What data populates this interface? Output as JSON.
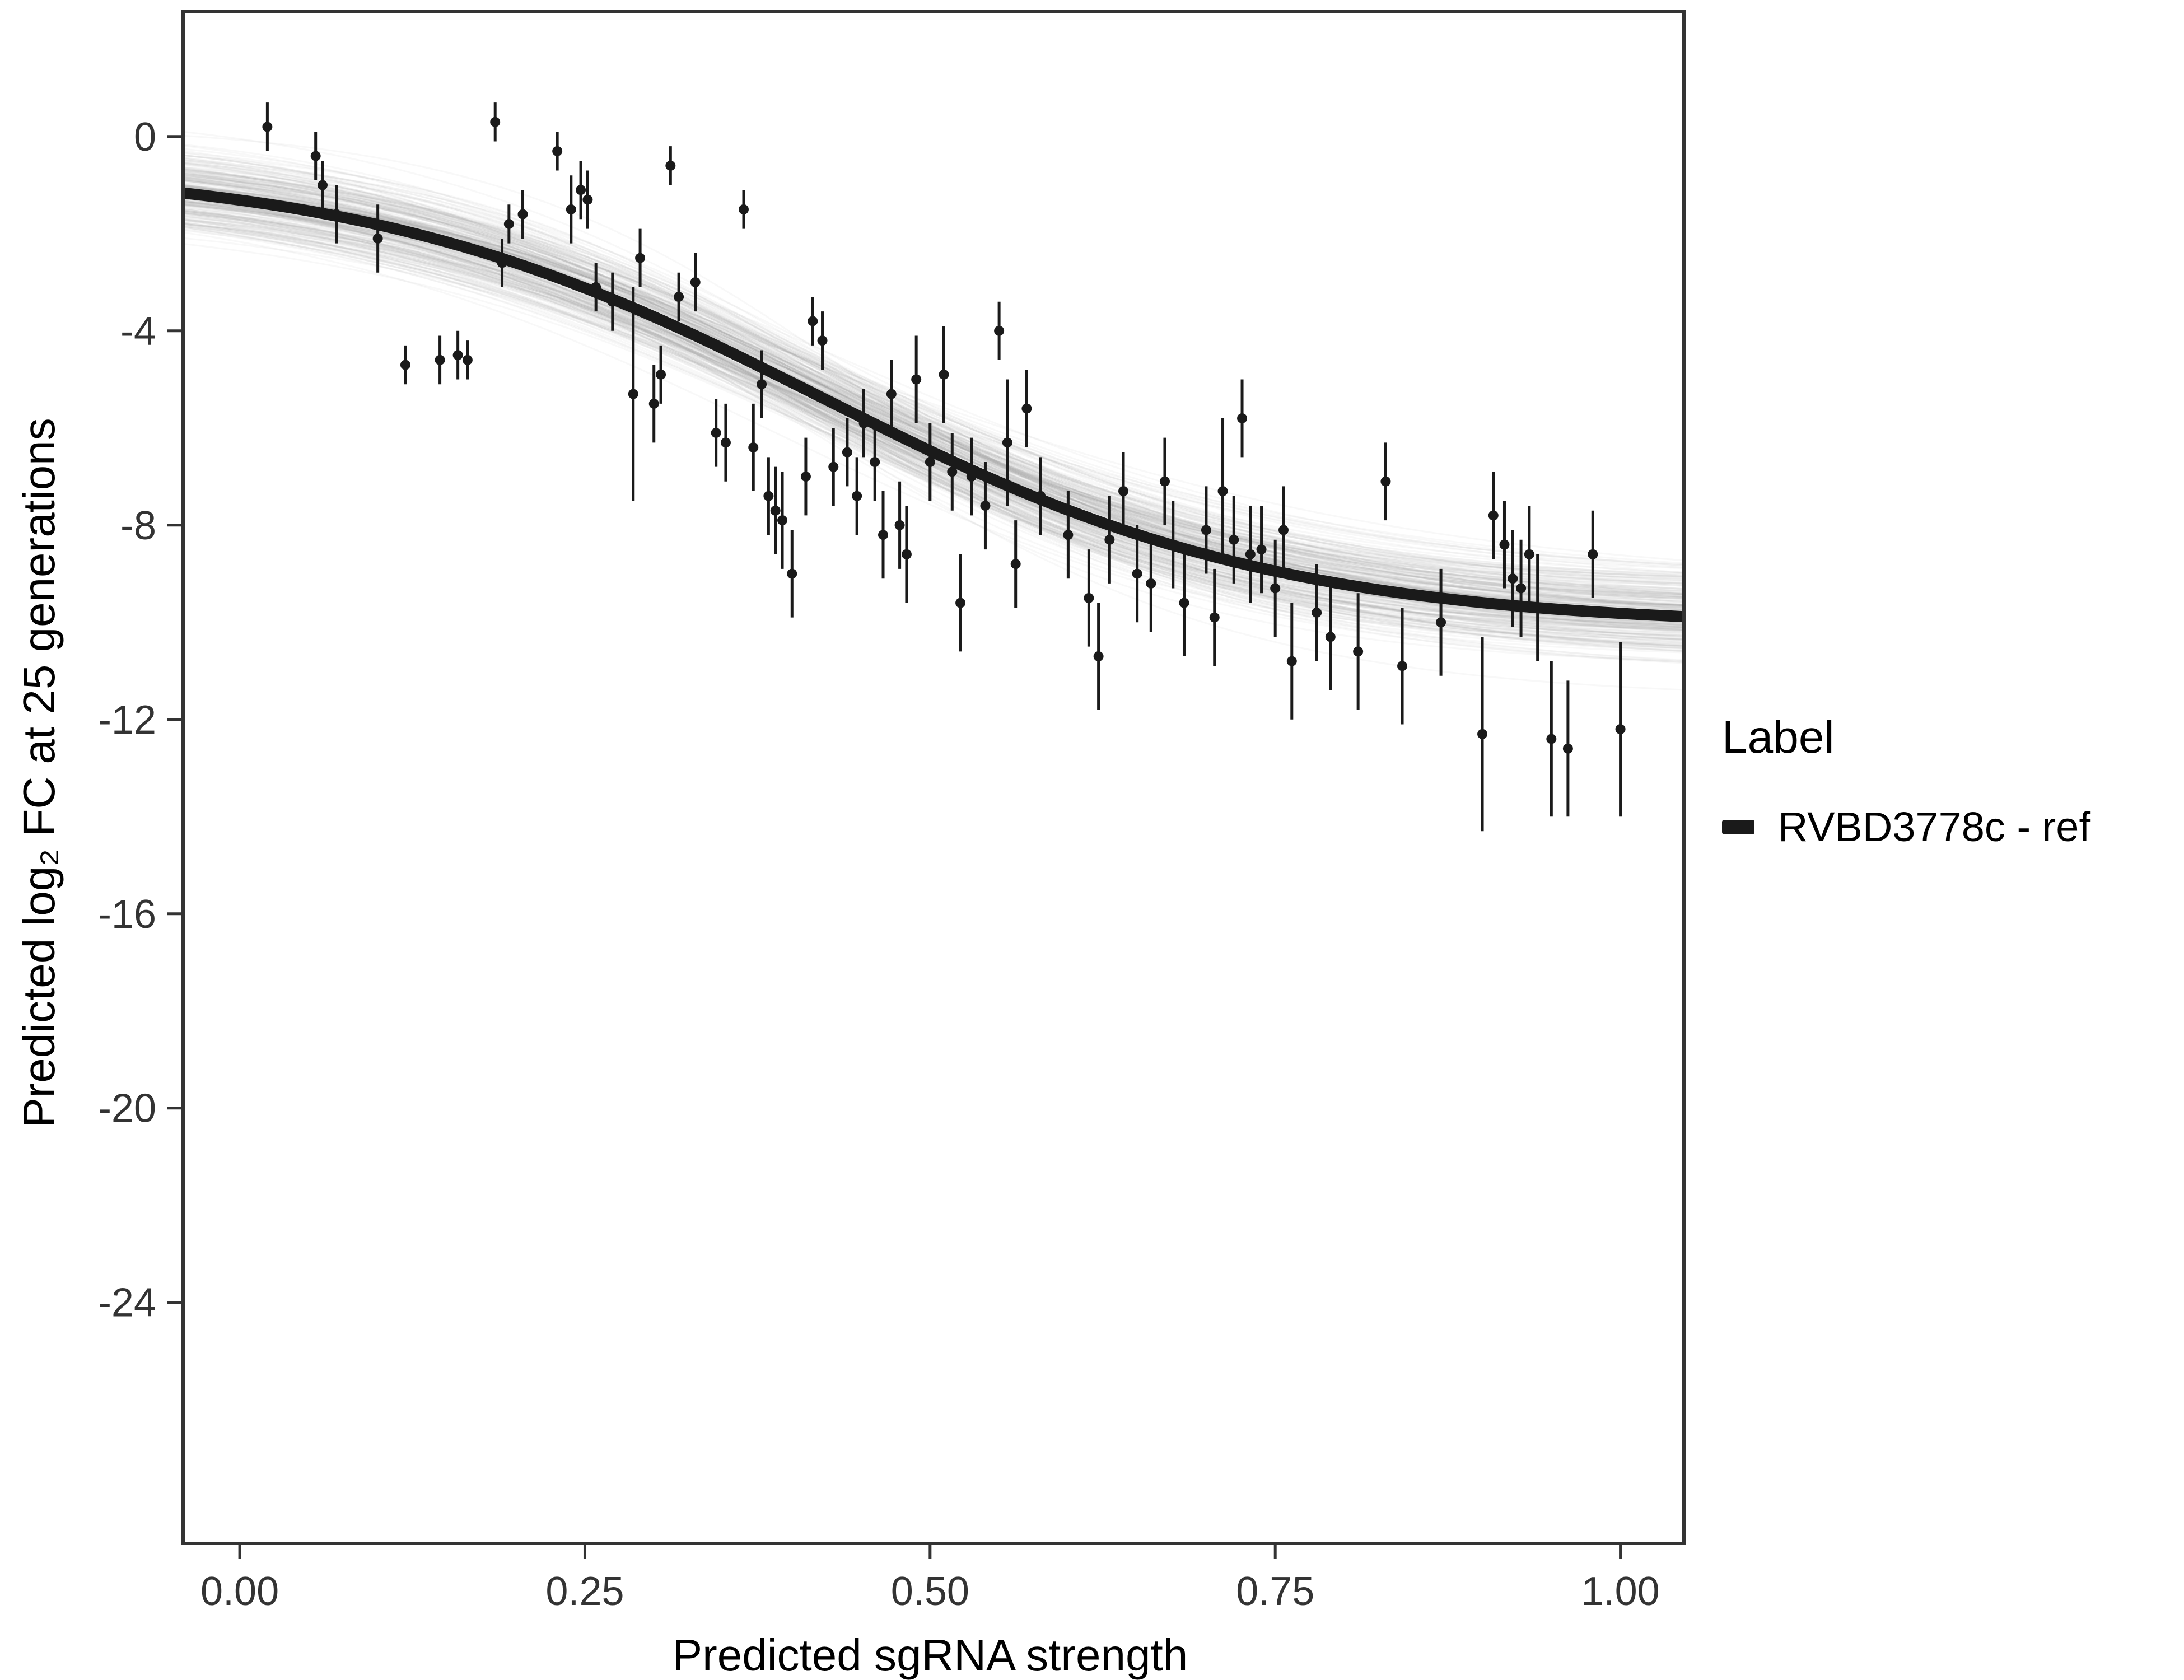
{
  "figure": {
    "background": "#ffffff",
    "panel_border_color": "#333333",
    "tick_color": "#333333",
    "tick_label_color": "#333333",
    "title_color": "#000000"
  },
  "chart_data": {
    "type": "scatter",
    "title": "",
    "xlabel": "Predicted sgRNA strength",
    "ylabel": "Predicted  log₂ FC at 25 generations",
    "xlim": [
      -0.041,
      1.046
    ],
    "ylim": [
      -28.96,
      2.58
    ],
    "x_ticks": [
      0,
      0.25,
      0.5,
      0.75,
      1
    ],
    "x_tick_labels": [
      "0.00",
      "0.25",
      "0.50",
      "0.75",
      "1.00"
    ],
    "y_ticks": [
      0,
      -4,
      -8,
      -12,
      -16,
      -20,
      -24
    ],
    "y_tick_labels": [
      "0",
      "-4",
      "-8",
      "-12",
      "-16",
      "-20",
      "-24"
    ],
    "grid": false,
    "point_color": "#1a1a1a",
    "point_radius": 9,
    "errorbar_width": 5,
    "points": [
      [
        0.02,
        0.2,
        0.5
      ],
      [
        0.055,
        -0.4,
        0.5
      ],
      [
        0.06,
        -1.0,
        0.5
      ],
      [
        0.07,
        -1.6,
        0.6
      ],
      [
        0.1,
        -2.1,
        0.7
      ],
      [
        0.12,
        -4.7,
        0.4
      ],
      [
        0.145,
        -4.6,
        0.5
      ],
      [
        0.158,
        -4.5,
        0.5
      ],
      [
        0.165,
        -4.6,
        0.4
      ],
      [
        0.185,
        0.3,
        0.4
      ],
      [
        0.19,
        -2.6,
        0.5
      ],
      [
        0.195,
        -1.8,
        0.4
      ],
      [
        0.205,
        -1.6,
        0.5
      ],
      [
        0.23,
        -0.3,
        0.4
      ],
      [
        0.24,
        -1.5,
        0.7
      ],
      [
        0.247,
        -1.1,
        0.6
      ],
      [
        0.252,
        -1.3,
        0.6
      ],
      [
        0.258,
        -3.1,
        0.5
      ],
      [
        0.27,
        -3.4,
        0.6
      ],
      [
        0.285,
        -5.3,
        2.2
      ],
      [
        0.29,
        -2.5,
        0.6
      ],
      [
        0.3,
        -5.5,
        0.8
      ],
      [
        0.305,
        -4.9,
        0.6
      ],
      [
        0.312,
        -0.6,
        0.4
      ],
      [
        0.318,
        -3.3,
        0.5
      ],
      [
        0.33,
        -3.0,
        0.6
      ],
      [
        0.345,
        -6.1,
        0.7
      ],
      [
        0.352,
        -6.3,
        0.8
      ],
      [
        0.365,
        -1.5,
        0.4
      ],
      [
        0.372,
        -6.4,
        0.9
      ],
      [
        0.378,
        -5.1,
        0.7
      ],
      [
        0.383,
        -7.4,
        0.8
      ],
      [
        0.388,
        -7.7,
        0.9
      ],
      [
        0.393,
        -7.9,
        1.0
      ],
      [
        0.4,
        -9.0,
        0.9
      ],
      [
        0.41,
        -7.0,
        0.8
      ],
      [
        0.415,
        -3.8,
        0.5
      ],
      [
        0.422,
        -4.2,
        0.6
      ],
      [
        0.43,
        -6.8,
        0.8
      ],
      [
        0.44,
        -6.5,
        0.7
      ],
      [
        0.447,
        -7.4,
        0.8
      ],
      [
        0.452,
        -5.9,
        0.7
      ],
      [
        0.46,
        -6.7,
        0.8
      ],
      [
        0.466,
        -8.2,
        0.9
      ],
      [
        0.472,
        -5.3,
        0.7
      ],
      [
        0.478,
        -8.0,
        0.9
      ],
      [
        0.483,
        -8.6,
        1.0
      ],
      [
        0.49,
        -5.0,
        0.9
      ],
      [
        0.5,
        -6.7,
        0.8
      ],
      [
        0.51,
        -4.9,
        1.0
      ],
      [
        0.516,
        -6.9,
        0.8
      ],
      [
        0.522,
        -9.6,
        1.0
      ],
      [
        0.53,
        -7.0,
        0.8
      ],
      [
        0.54,
        -7.6,
        0.9
      ],
      [
        0.55,
        -4.0,
        0.6
      ],
      [
        0.556,
        -6.3,
        1.3
      ],
      [
        0.562,
        -8.8,
        0.9
      ],
      [
        0.57,
        -5.6,
        0.8
      ],
      [
        0.58,
        -7.4,
        0.8
      ],
      [
        0.6,
        -8.2,
        0.9
      ],
      [
        0.615,
        -9.5,
        1.0
      ],
      [
        0.622,
        -10.7,
        1.1
      ],
      [
        0.63,
        -8.3,
        0.9
      ],
      [
        0.64,
        -7.3,
        0.8
      ],
      [
        0.65,
        -9.0,
        1.0
      ],
      [
        0.66,
        -9.2,
        1.0
      ],
      [
        0.67,
        -7.1,
        0.9
      ],
      [
        0.676,
        -8.4,
        0.9
      ],
      [
        0.684,
        -9.6,
        1.1
      ],
      [
        0.7,
        -8.1,
        0.9
      ],
      [
        0.706,
        -9.9,
        1.0
      ],
      [
        0.712,
        -7.3,
        1.5
      ],
      [
        0.72,
        -8.3,
        0.9
      ],
      [
        0.726,
        -5.8,
        0.8
      ],
      [
        0.732,
        -8.6,
        1.0
      ],
      [
        0.74,
        -8.5,
        0.9
      ],
      [
        0.75,
        -9.3,
        1.0
      ],
      [
        0.756,
        -8.1,
        0.9
      ],
      [
        0.762,
        -10.8,
        1.2
      ],
      [
        0.78,
        -9.8,
        1.0
      ],
      [
        0.79,
        -10.3,
        1.1
      ],
      [
        0.81,
        -10.6,
        1.2
      ],
      [
        0.83,
        -7.1,
        0.8
      ],
      [
        0.842,
        -10.9,
        1.2
      ],
      [
        0.87,
        -10.0,
        1.1
      ],
      [
        0.9,
        -12.3,
        2.0
      ],
      [
        0.908,
        -7.8,
        0.9
      ],
      [
        0.916,
        -8.4,
        0.9
      ],
      [
        0.922,
        -9.1,
        1.0
      ],
      [
        0.928,
        -9.3,
        1.0
      ],
      [
        0.934,
        -8.6,
        1.0
      ],
      [
        0.94,
        -9.7,
        1.1
      ],
      [
        0.95,
        -12.4,
        1.6
      ],
      [
        0.962,
        -12.6,
        1.4
      ],
      [
        0.98,
        -8.6,
        0.9
      ],
      [
        1.0,
        -12.2,
        1.8
      ]
    ],
    "fit_curve": {
      "shape": "sigmoid",
      "upper_asymptote": -0.6,
      "lower_asymptote": -10.1,
      "midpoint": 0.42,
      "steepness": 6.0,
      "color": "#1a1a1a",
      "width": 20
    },
    "uncertainty_band": {
      "n_draws": 260,
      "color": "#808080",
      "opacity": 0.055,
      "line_width": 3,
      "sd_upper": 0.45,
      "sd_lower": 0.45,
      "sd_midpoint": 0.018,
      "sd_steepness": 0.55
    },
    "legend": {
      "title": "Label",
      "position": "right",
      "items": [
        {
          "label": "RVBD3778c - ref",
          "color": "#1a1a1a"
        }
      ]
    }
  }
}
